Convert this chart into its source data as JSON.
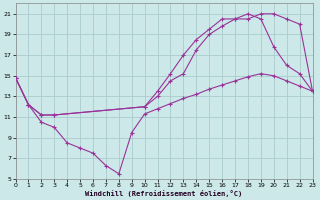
{
  "xlabel": "Windchill (Refroidissement éolien,°C)",
  "bg_color": "#cce8e8",
  "grid_color": "#aacccc",
  "line_color": "#993399",
  "xlim": [
    0,
    23
  ],
  "ylim": [
    5,
    22
  ],
  "xticks": [
    0,
    1,
    2,
    3,
    4,
    5,
    6,
    7,
    8,
    9,
    10,
    11,
    12,
    13,
    14,
    15,
    16,
    17,
    18,
    19,
    20,
    21,
    22,
    23
  ],
  "yticks": [
    5,
    7,
    9,
    11,
    13,
    15,
    17,
    19,
    21
  ],
  "line1_x": [
    0,
    1,
    2,
    3,
    4,
    5,
    6,
    7,
    8,
    9,
    10,
    11,
    12,
    13,
    14,
    15,
    16,
    17,
    18,
    19,
    20,
    21,
    22,
    23
  ],
  "line1_y": [
    14.8,
    12.2,
    10.5,
    10.0,
    8.5,
    8.0,
    7.5,
    6.3,
    5.5,
    9.5,
    11.3,
    11.8,
    12.3,
    12.8,
    13.2,
    13.7,
    14.1,
    14.5,
    14.9,
    15.2,
    15.0,
    14.5,
    14.0,
    13.5
  ],
  "line2_x": [
    0,
    1,
    2,
    3,
    10,
    11,
    12,
    13,
    14,
    15,
    16,
    17,
    18,
    19,
    20,
    21,
    22,
    23
  ],
  "line2_y": [
    14.8,
    12.2,
    11.2,
    11.2,
    12.0,
    13.0,
    14.5,
    15.2,
    17.5,
    19.0,
    19.8,
    20.5,
    20.5,
    21.0,
    21.0,
    20.5,
    20.0,
    13.5
  ],
  "line3_x": [
    0,
    1,
    2,
    3,
    10,
    11,
    12,
    13,
    14,
    15,
    16,
    17,
    18,
    19,
    20,
    21,
    22,
    23
  ],
  "line3_y": [
    14.8,
    12.2,
    11.2,
    11.2,
    12.0,
    13.5,
    15.2,
    17.0,
    18.5,
    19.5,
    20.5,
    20.5,
    21.0,
    20.5,
    17.8,
    16.0,
    15.2,
    13.5
  ]
}
